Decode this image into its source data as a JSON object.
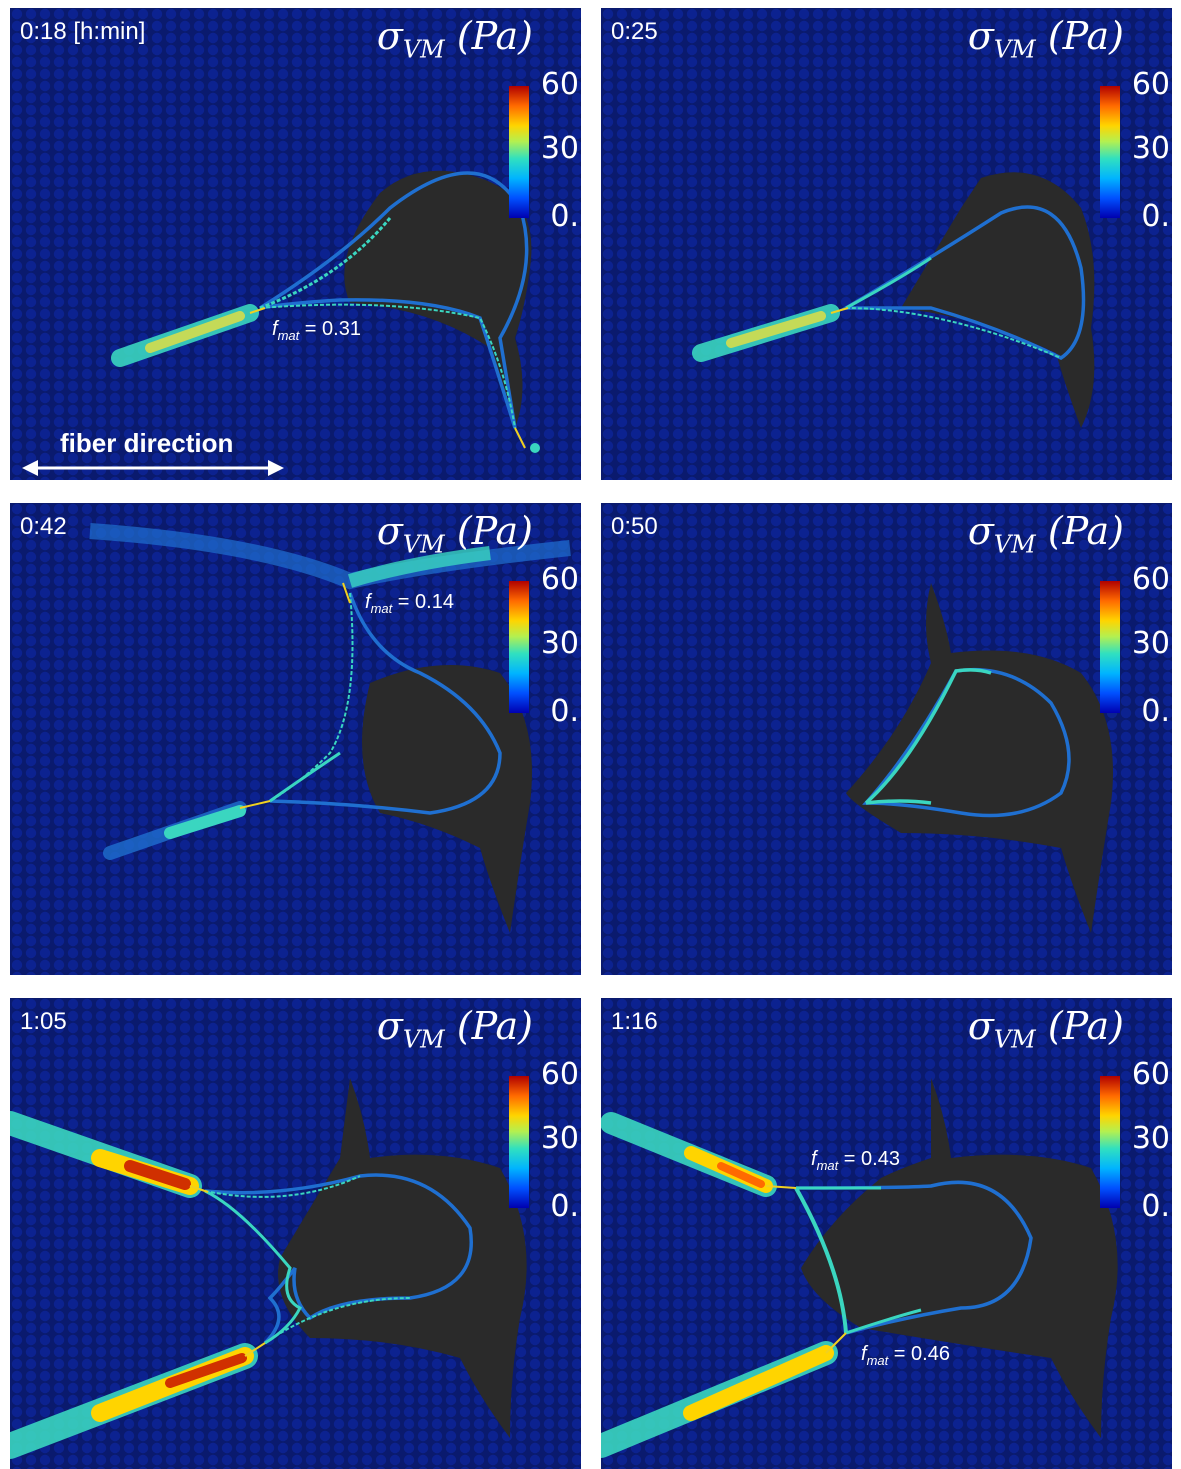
{
  "time_unit_note": "[h:min]",
  "colorbar": {
    "title_symbol": "σ",
    "title_subscript": "VM",
    "title_unit": "(Pa)",
    "ticks": [
      "60",
      "30",
      "0."
    ],
    "gradient_colors": [
      "#0000b0",
      "#00b4ff",
      "#b4f050",
      "#ffd400",
      "#ff6a00",
      "#b00000"
    ]
  },
  "fiber_direction_label": "fiber direction",
  "panels": [
    {
      "time": "0:18 [h:min]",
      "fmat": [
        {
          "label": "f",
          "sub": "mat",
          "value": "= 0.31"
        }
      ]
    },
    {
      "time": "0:25",
      "fmat": []
    },
    {
      "time": "0:42",
      "fmat": [
        {
          "label": "f",
          "sub": "mat",
          "value": "= 0.14"
        }
      ]
    },
    {
      "time": "0:50",
      "fmat": []
    },
    {
      "time": "1:05",
      "fmat": []
    },
    {
      "time": "1:16",
      "fmat": [
        {
          "label": "f",
          "sub": "mat",
          "value": "= 0.43"
        },
        {
          "label": "f",
          "sub": "mat",
          "value": "= 0.46"
        }
      ]
    }
  ],
  "colors": {
    "background_medium": "#0a1a6e",
    "cell_body": "#2a2a2a",
    "cell_membrane_low": "#1f6fd0",
    "cell_membrane_mid": "#3ad6c0",
    "tether": "#f0d020"
  }
}
